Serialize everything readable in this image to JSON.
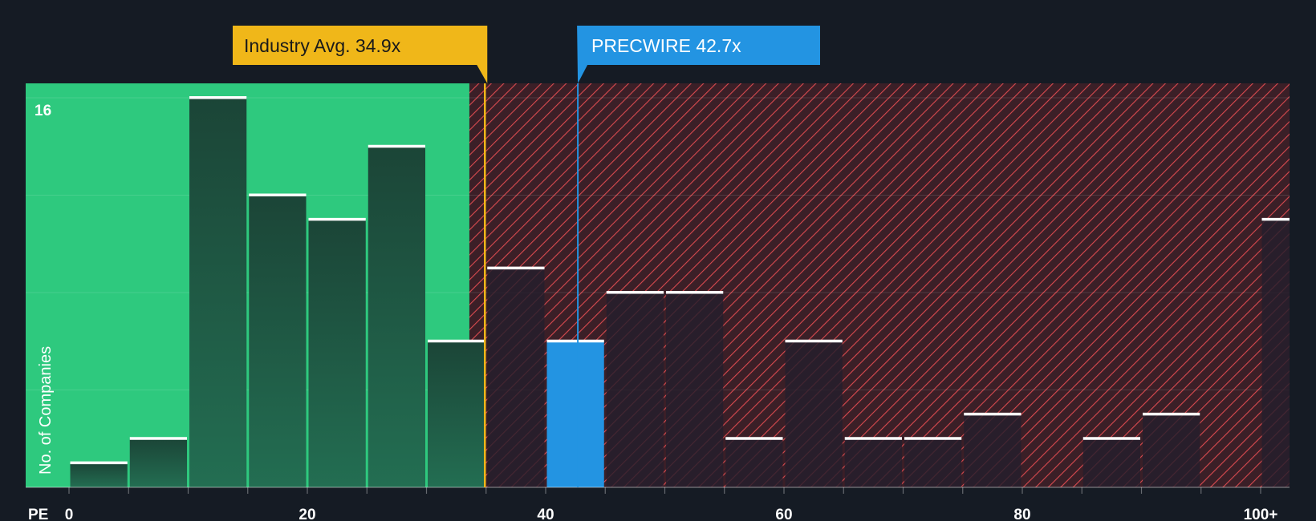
{
  "chart_data": {
    "type": "bar",
    "title": "",
    "xlabel": "PE",
    "ylabel": "No. of Companies",
    "x_tick_labels": [
      "0",
      "20",
      "40",
      "60",
      "80",
      "100+"
    ],
    "x_tick_values": [
      0,
      20,
      40,
      60,
      80,
      100
    ],
    "y_tick_label": "16",
    "ylim": [
      0,
      16
    ],
    "xlim": [
      0,
      103
    ],
    "bin_width": 5,
    "bins": [
      {
        "x": 0,
        "value": 1
      },
      {
        "x": 5,
        "value": 2
      },
      {
        "x": 10,
        "value": 16
      },
      {
        "x": 15,
        "value": 12
      },
      {
        "x": 20,
        "value": 11
      },
      {
        "x": 25,
        "value": 14
      },
      {
        "x": 30,
        "value": 6
      },
      {
        "x": 35,
        "value": 9
      },
      {
        "x": 40,
        "value": 6
      },
      {
        "x": 45,
        "value": 8
      },
      {
        "x": 50,
        "value": 8
      },
      {
        "x": 55,
        "value": 2
      },
      {
        "x": 60,
        "value": 6
      },
      {
        "x": 65,
        "value": 2
      },
      {
        "x": 70,
        "value": 2
      },
      {
        "x": 75,
        "value": 3
      },
      {
        "x": 80,
        "value": 0
      },
      {
        "x": 85,
        "value": 2
      },
      {
        "x": 90,
        "value": 3
      },
      {
        "x": 95,
        "value": 0
      },
      {
        "x": 100,
        "value": 11
      }
    ],
    "highlight_bin_x": 40,
    "industry_avg": {
      "label": "Industry Avg. 34.9x",
      "value": 34.9
    },
    "company": {
      "label": "PRECWIRE 42.7x",
      "value": 42.7
    },
    "fair_zone_end": 33.6,
    "colors": {
      "background": "#151b24",
      "fair_zone": "#2ec97e",
      "fair_bar": "#1c4a3b",
      "over_zone": "#3b1f27",
      "hatch": "#d94a4f",
      "over_bar": "#241f2c",
      "company_bar": "#2394e2",
      "bar_cap": "#ffffff",
      "industry_callout": "#f0b719",
      "company_callout": "#2394e2",
      "axis_text": "#ffffff"
    }
  }
}
